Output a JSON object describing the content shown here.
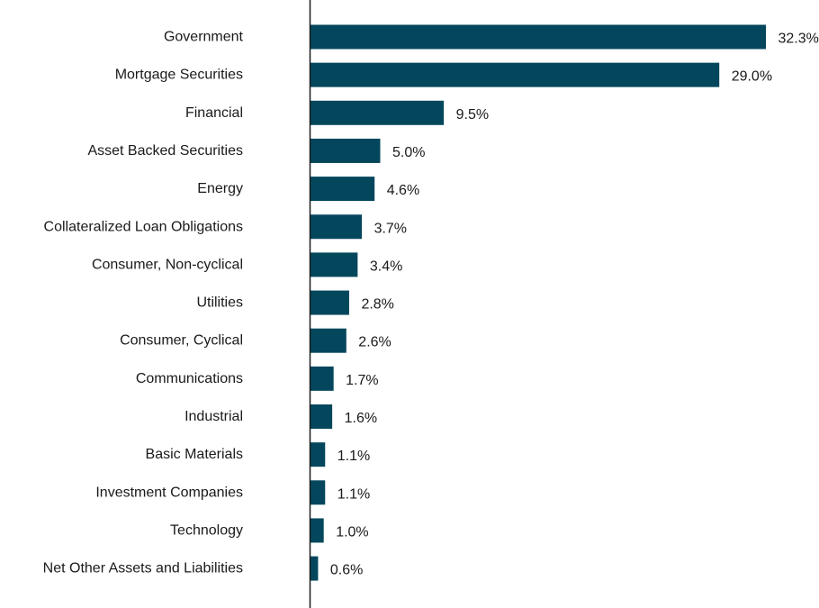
{
  "chart_data": {
    "type": "bar",
    "orientation": "horizontal",
    "title": "",
    "xlabel": "",
    "ylabel": "",
    "bar_color": "#04475c",
    "grid": false,
    "value_format": "percent",
    "categories": [
      "Government",
      "Mortgage Securities",
      "Financial",
      "Asset Backed Securities",
      "Energy",
      "Collateralized Loan Obligations",
      "Consumer, Non-cyclical",
      "Utilities",
      "Consumer, Cyclical",
      "Communications",
      "Industrial",
      "Basic Materials",
      "Investment Companies",
      "Technology",
      "Net Other Assets and Liabilities"
    ],
    "values": [
      32.3,
      29.0,
      9.5,
      5.0,
      4.6,
      3.7,
      3.4,
      2.8,
      2.6,
      1.7,
      1.6,
      1.1,
      1.1,
      1.0,
      0.6
    ],
    "value_labels": [
      "32.3%",
      "29.0%",
      "9.5%",
      "5.0%",
      "4.6%",
      "3.7%",
      "3.4%",
      "2.8%",
      "2.6%",
      "1.7%",
      "1.6%",
      "1.1%",
      "1.1%",
      "1.0%",
      "0.6%"
    ]
  }
}
